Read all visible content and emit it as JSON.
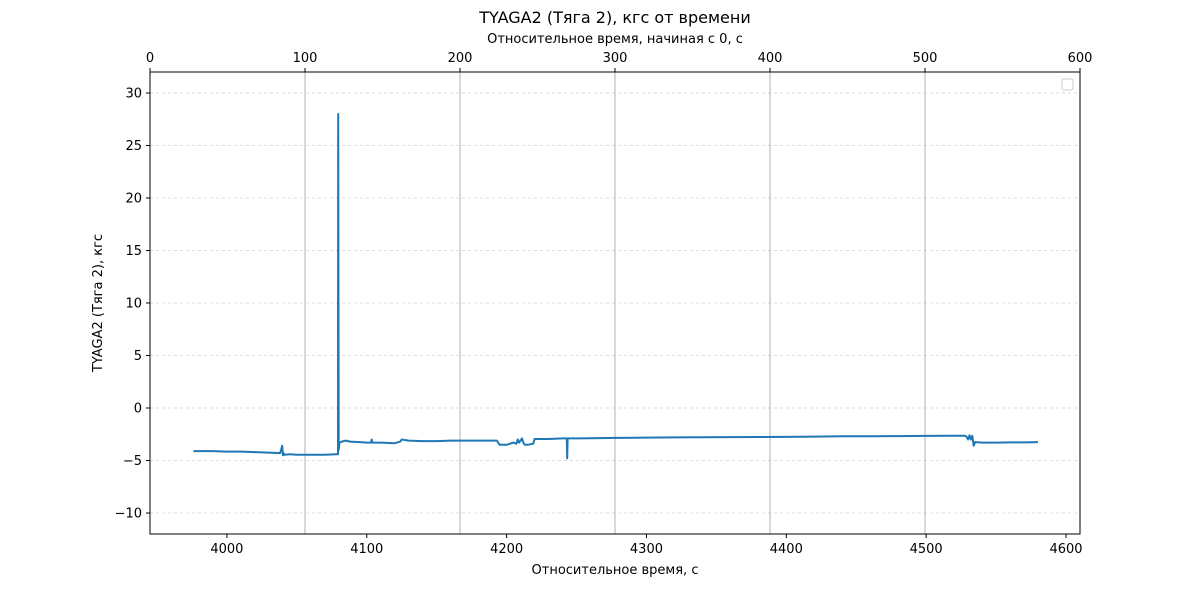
{
  "chart_data": {
    "type": "line",
    "title": "TYAGA2 (Тяга 2), кгс от времени",
    "xlabel": "Относительное время, с",
    "ylabel": "TYAGA2 (Тяга 2), кгс",
    "x2label": "Относительное время, начиная с 0, с",
    "xlim": [
      3945,
      4610
    ],
    "ylim": [
      -12,
      32
    ],
    "x2lim": [
      0,
      600
    ],
    "x_ticks": [
      4000,
      4100,
      4200,
      4300,
      4400,
      4500,
      4600
    ],
    "y_ticks": [
      -10,
      -5,
      0,
      5,
      10,
      15,
      20,
      25,
      30
    ],
    "x2_ticks": [
      0,
      100,
      200,
      300,
      400,
      500,
      600
    ],
    "x2_tick_labels": [
      "0",
      "100",
      "200",
      "300",
      "400",
      "500",
      "600"
    ],
    "x_tick_labels": [
      "4000",
      "4100",
      "4200",
      "4300",
      "4400",
      "4500",
      "4600"
    ],
    "y_tick_labels": [
      "−10",
      "−5",
      "0",
      "5",
      "10",
      "15",
      "20",
      "25",
      "30"
    ],
    "x2_gridlines": true,
    "y_gridlines": "dashed",
    "legend": "top-right, empty",
    "line_color": "#1f77b4",
    "series": [
      {
        "x": [
          3976,
          3990,
          4000,
          4010,
          4020,
          4030,
          4038,
          4039.5,
          4040,
          4040.5,
          4041,
          4045,
          4050,
          4060,
          4070,
          4078,
          4079.4,
          4079.6,
          4079.9,
          4080.2,
          4080.5,
          4082,
          4085,
          4088,
          4095,
          4100,
          4103,
          4103.5,
          4104,
          4105,
          4110,
          4120,
          4124,
          4125,
          4130,
          4140,
          4150,
          4160,
          4170,
          4180,
          4190,
          4193,
          4195,
          4200,
          4205,
          4207,
          4208,
          4209,
          4211,
          4212,
          4213,
          4215,
          4219,
          4220,
          4222,
          4230,
          4240,
          4243,
          4243.3,
          4243.6,
          4244,
          4250,
          4260,
          4280,
          4300,
          4320,
          4340,
          4360,
          4380,
          4400,
          4420,
          4440,
          4460,
          4480,
          4500,
          4520,
          4528,
          4529,
          4530,
          4531,
          4532,
          4533,
          4534,
          4535,
          4540,
          4550,
          4560,
          4570,
          4580
        ],
        "y": [
          -4.1,
          -4.1,
          -4.15,
          -4.15,
          -4.2,
          -4.25,
          -4.3,
          -3.6,
          -4.5,
          -4.3,
          -4.45,
          -4.4,
          -4.45,
          -4.45,
          -4.45,
          -4.4,
          -4.4,
          28.0,
          -4.0,
          -3.6,
          -3.3,
          -3.2,
          -3.1,
          -3.2,
          -3.25,
          -3.3,
          -3.3,
          -3.0,
          -3.3,
          -3.3,
          -3.3,
          -3.35,
          -3.2,
          -3.0,
          -3.1,
          -3.15,
          -3.15,
          -3.1,
          -3.1,
          -3.1,
          -3.1,
          -3.1,
          -3.5,
          -3.5,
          -3.3,
          -3.4,
          -3.0,
          -3.3,
          -2.9,
          -3.3,
          -3.5,
          -3.5,
          -3.4,
          -2.95,
          -2.95,
          -2.95,
          -2.9,
          -2.9,
          -4.8,
          -2.9,
          -2.9,
          -2.9,
          -2.88,
          -2.85,
          -2.82,
          -2.8,
          -2.78,
          -2.77,
          -2.76,
          -2.75,
          -2.72,
          -2.7,
          -2.7,
          -2.68,
          -2.66,
          -2.65,
          -2.65,
          -2.75,
          -3.0,
          -2.6,
          -3.0,
          -2.65,
          -3.6,
          -3.25,
          -3.3,
          -3.3,
          -3.28,
          -3.28,
          -3.25
        ]
      }
    ]
  }
}
